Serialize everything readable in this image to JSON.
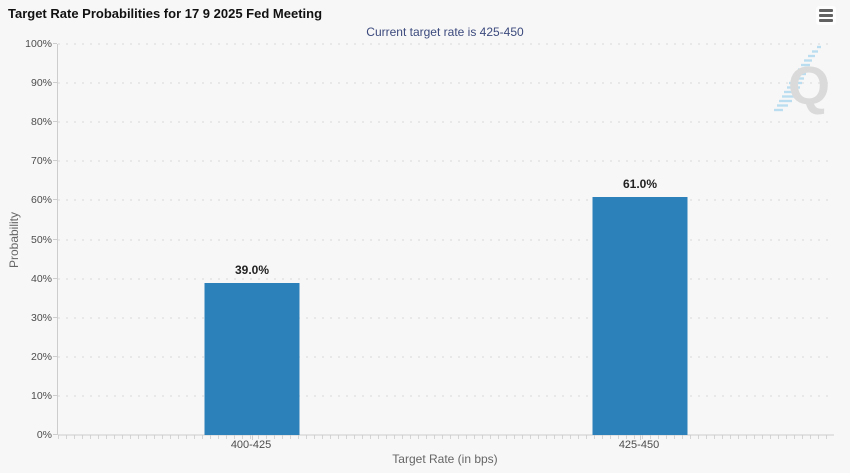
{
  "header": {
    "title": "Target Rate Probabilities for 17 9 2025 Fed Meeting",
    "menu_icon": "hamburger-menu"
  },
  "watermark": {
    "icon": "q-logo",
    "color_gray": "#d7d7d7",
    "color_blue": "#a9d6ee"
  },
  "colors": {
    "background": "#f7f7f7",
    "bar": "#2d81ba",
    "subtitle_text": "#3c4a7d",
    "grid": "#d9d9d9",
    "axis": "#cdcdcd"
  },
  "chart_data": {
    "type": "bar",
    "title": "Target Rate Probabilities for 17 9 2025 Fed Meeting",
    "subtitle": "Current target rate is 425-450",
    "categories": [
      "400-425",
      "425-450"
    ],
    "values": [
      39.0,
      61.0
    ],
    "value_labels": [
      "39.0%",
      "61.0%"
    ],
    "xlabel": "Target Rate (in bps)",
    "ylabel": "Probability",
    "ylim": [
      0,
      100
    ],
    "ytick_step": 10,
    "ytick_suffix": "%",
    "grid": "dotted-horizontal",
    "legend": "none",
    "bar_color": "#2d81ba"
  }
}
